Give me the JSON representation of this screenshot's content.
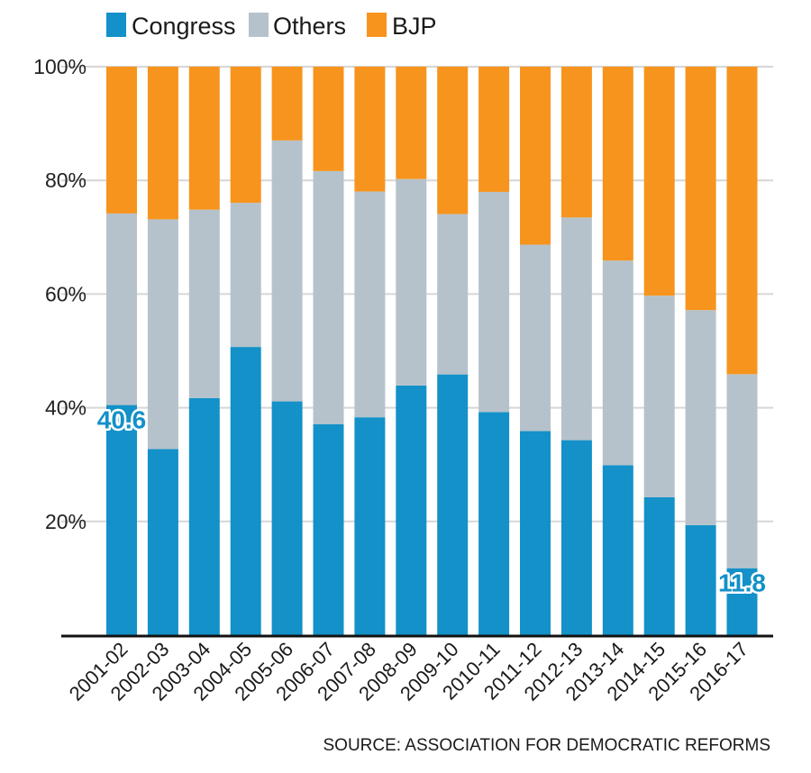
{
  "colors": {
    "congress": "#1391c8",
    "others": "#b6c2cb",
    "bjp": "#f7941d",
    "grid": "#d6d6d6",
    "axis": "#111111",
    "label_outline": "#ffffff"
  },
  "chart_data": {
    "type": "bar",
    "stacked": true,
    "categories": [
      "2001-02",
      "2002-03",
      "2003-04",
      "2004-05",
      "2005-06",
      "2006-07",
      "2007-08",
      "2008-09",
      "2009-10",
      "2010-11",
      "2011-12",
      "2012-13",
      "2013-14",
      "2014-15",
      "2015-16",
      "2016-17"
    ],
    "series": [
      {
        "name": "Congress",
        "values": [
          40.6,
          32.8,
          41.8,
          50.8,
          41.2,
          37.2,
          38.4,
          44.0,
          46.0,
          39.2,
          36.0,
          34.4,
          30.0,
          24.2,
          19.4,
          11.8
        ]
      },
      {
        "name": "Others",
        "values": [
          33.8,
          40.5,
          33.2,
          25.4,
          46.0,
          44.6,
          39.8,
          36.4,
          28.3,
          38.7,
          32.9,
          39.3,
          36.1,
          35.4,
          37.9,
          34.2
        ]
      },
      {
        "name": "BJP",
        "values": [
          25.9,
          26.9,
          25.2,
          24.0,
          13.0,
          18.4,
          22.0,
          19.8,
          26.0,
          22.0,
          31.4,
          26.6,
          34.2,
          40.2,
          42.9,
          54.2
        ]
      }
    ],
    "ylim": [
      0,
      100
    ],
    "yticks": [
      20,
      40,
      60,
      80,
      100
    ],
    "ytick_labels": [
      "20%",
      "40%",
      "60%",
      "80%",
      "100%"
    ],
    "grid": true,
    "legend_position": "top-left",
    "annotations": [
      {
        "category": "2001-02",
        "series": "Congress",
        "text": "40.6"
      },
      {
        "category": "2016-17",
        "series": "Congress",
        "text": "11.8"
      }
    ],
    "source": "SOURCE: ASSOCIATION FOR DEMOCRATIC REFORMS"
  }
}
